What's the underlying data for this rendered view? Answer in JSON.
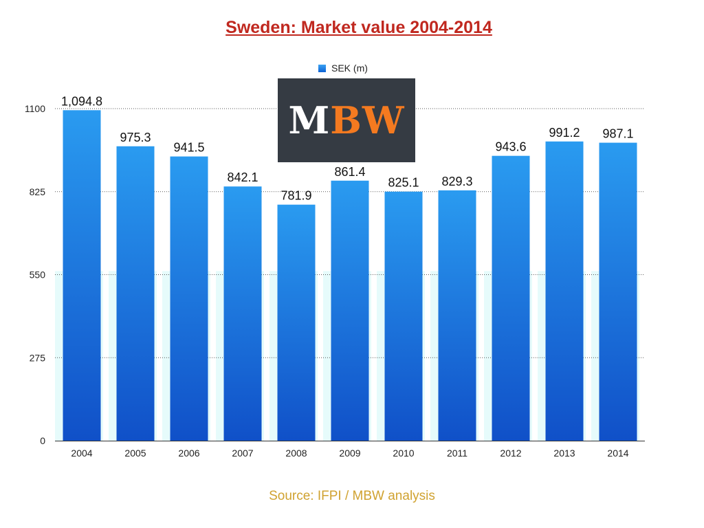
{
  "chart_data": {
    "type": "bar",
    "title": "Sweden: Market value 2004-2014",
    "categories": [
      "2004",
      "2005",
      "2006",
      "2007",
      "2008",
      "2009",
      "2010",
      "2011",
      "2012",
      "2013",
      "2014"
    ],
    "series": [
      {
        "name": "SEK (m)",
        "values": [
          1094.8,
          975.3,
          941.5,
          842.1,
          781.9,
          861.4,
          825.1,
          829.3,
          943.6,
          991.2,
          987.1
        ],
        "value_labels": [
          "1,094.8",
          "975.3",
          "941.5",
          "842.1",
          "781.9",
          "861.4",
          "825.1",
          "829.3",
          "943.6",
          "991.2",
          "987.1"
        ]
      }
    ],
    "yticks": [
      0,
      275,
      550,
      825,
      1100
    ],
    "ylim": [
      0,
      1100
    ],
    "grid": true,
    "legend": "top-center",
    "colors": {
      "bar_top": "#2a9bf0",
      "bar_bottom": "#1050c8",
      "title": "#c0281f",
      "source": "#d0a230"
    }
  },
  "logo": {
    "text_white": "M",
    "text_orange": "BW",
    "background": "#353b43",
    "accent": "#f47a20"
  },
  "source": "Source: IFPI / MBW analysis"
}
